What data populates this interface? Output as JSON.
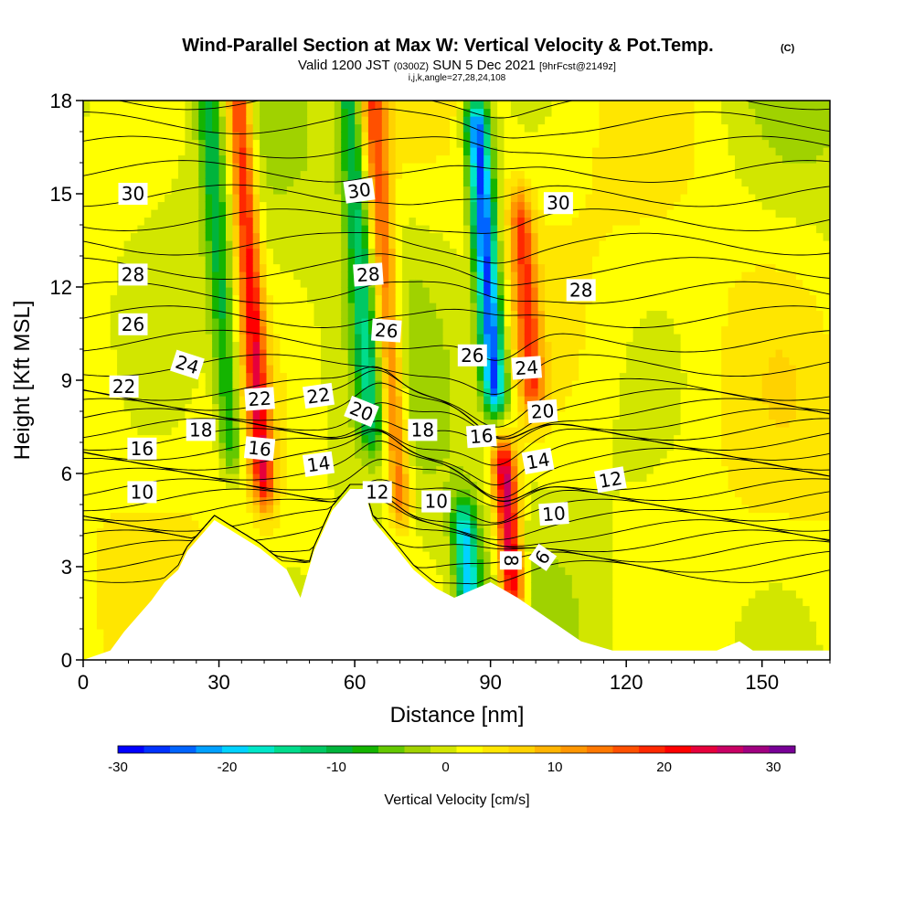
{
  "title": {
    "main": "Wind-Parallel Section at Max W: Vertical Velocity & Pot.Temp.",
    "mark": "(C)",
    "valid_prefix": "Valid 1200 JST",
    "valid_zulu": "(0300Z)",
    "valid_date": "SUN 5 Dec 2021",
    "forecast": "[9hrFcst@2149z]",
    "params": "i,j,k,angle=27,28,24,108"
  },
  "chart_data": {
    "type": "heatmap",
    "xlabel": "Distance [nm]",
    "ylabel": "Height [Kft MSL]",
    "xlim": [
      0,
      165
    ],
    "ylim": [
      0,
      18
    ],
    "x_ticks": [
      0,
      30,
      60,
      90,
      120,
      150
    ],
    "y_ticks": [
      0,
      3,
      6,
      9,
      12,
      15,
      18
    ],
    "colorbar": {
      "title": "Vertical Velocity [cm/s]",
      "range": [
        -30,
        32
      ],
      "ticks": [
        -30,
        -20,
        -10,
        0,
        10,
        20,
        30
      ],
      "colors": [
        "#0000ff",
        "#0032ff",
        "#0064ff",
        "#00a0ff",
        "#00d2ff",
        "#00e6c8",
        "#00dc8c",
        "#00c864",
        "#00b43c",
        "#14b400",
        "#64c800",
        "#a0d200",
        "#d2e600",
        "#ffff00",
        "#ffe600",
        "#ffd200",
        "#ffb400",
        "#ff9600",
        "#ff7800",
        "#ff5000",
        "#ff2800",
        "#ff0000",
        "#e6003c",
        "#c80064",
        "#a00080",
        "#780096"
      ]
    },
    "velocity_features": [
      {
        "type": "updraft",
        "x": 37,
        "y_range": [
          6,
          18
        ],
        "w_max": 20
      },
      {
        "type": "updraft",
        "x": 67,
        "y_range": [
          5.5,
          18
        ],
        "w_max": 15
      },
      {
        "type": "updraft",
        "x": 94,
        "y_range": [
          2.5,
          6
        ],
        "w_max": 25
      },
      {
        "type": "updraft",
        "x": 98,
        "y_range": [
          9,
          14
        ],
        "w_max": 15
      },
      {
        "type": "downdraft",
        "x": 89,
        "y_range": [
          9,
          17
        ],
        "w_min": -28
      },
      {
        "type": "downdraft",
        "x": 85,
        "y_range": [
          1.5,
          4
        ],
        "w_min": -20
      },
      {
        "type": "downdraft",
        "x": 30,
        "y_range": [
          7,
          18
        ],
        "w_min": -10
      },
      {
        "type": "downdraft",
        "x": 61,
        "y_range": [
          8,
          18
        ],
        "w_min": -12
      }
    ],
    "terrain": [
      {
        "x": 0,
        "h": 0
      },
      {
        "x": 6,
        "h": 0.3
      },
      {
        "x": 9,
        "h": 0.9
      },
      {
        "x": 12,
        "h": 1.4
      },
      {
        "x": 15,
        "h": 1.9
      },
      {
        "x": 18,
        "h": 2.5
      },
      {
        "x": 21,
        "h": 2.9
      },
      {
        "x": 23,
        "h": 3.5
      },
      {
        "x": 29,
        "h": 4.5
      },
      {
        "x": 39,
        "h": 3.6
      },
      {
        "x": 45,
        "h": 2.9
      },
      {
        "x": 48,
        "h": 2.0
      },
      {
        "x": 51,
        "h": 3.5
      },
      {
        "x": 55,
        "h": 4.8
      },
      {
        "x": 59,
        "h": 5.5
      },
      {
        "x": 62,
        "h": 5.5
      },
      {
        "x": 64,
        "h": 4.5
      },
      {
        "x": 68,
        "h": 3.8
      },
      {
        "x": 73,
        "h": 2.9
      },
      {
        "x": 78,
        "h": 2.3
      },
      {
        "x": 82,
        "h": 2.0
      },
      {
        "x": 90,
        "h": 2.5
      },
      {
        "x": 96,
        "h": 2.0
      },
      {
        "x": 103,
        "h": 1.3
      },
      {
        "x": 110,
        "h": 0.6
      },
      {
        "x": 117,
        "h": 0.3
      },
      {
        "x": 140,
        "h": 0.3
      },
      {
        "x": 145,
        "h": 0.6
      },
      {
        "x": 148,
        "h": 0.3
      },
      {
        "x": 165,
        "h": 0.3
      }
    ],
    "contour_labels": [
      {
        "text": "30",
        "x": 11,
        "y": 15,
        "rot": 0
      },
      {
        "text": "30",
        "x": 61,
        "y": 15.1,
        "rot": -8
      },
      {
        "text": "30",
        "x": 105,
        "y": 14.7,
        "rot": 0
      },
      {
        "text": "28",
        "x": 11,
        "y": 12.4,
        "rot": 0
      },
      {
        "text": "28",
        "x": 63,
        "y": 12.4,
        "rot": -4
      },
      {
        "text": "28",
        "x": 110,
        "y": 11.9,
        "rot": 0
      },
      {
        "text": "26",
        "x": 11,
        "y": 10.8,
        "rot": 0
      },
      {
        "text": "26",
        "x": 67,
        "y": 10.6,
        "rot": 4
      },
      {
        "text": "26",
        "x": 86,
        "y": 9.8,
        "rot": 0
      },
      {
        "text": "24",
        "x": 23,
        "y": 9.5,
        "rot": 18
      },
      {
        "text": "24",
        "x": 98,
        "y": 9.4,
        "rot": -4
      },
      {
        "text": "22",
        "x": 9,
        "y": 8.8,
        "rot": 0
      },
      {
        "text": "22",
        "x": 39,
        "y": 8.4,
        "rot": -4
      },
      {
        "text": "22",
        "x": 52,
        "y": 8.5,
        "rot": -8
      },
      {
        "text": "20",
        "x": 61.5,
        "y": 8.0,
        "rot": 22
      },
      {
        "text": "20",
        "x": 101.5,
        "y": 8.0,
        "rot": -4
      },
      {
        "text": "18",
        "x": 26,
        "y": 7.4,
        "rot": 0
      },
      {
        "text": "18",
        "x": 75,
        "y": 7.4,
        "rot": 0
      },
      {
        "text": "16",
        "x": 13,
        "y": 6.8,
        "rot": 0
      },
      {
        "text": "16",
        "x": 39,
        "y": 6.8,
        "rot": 6
      },
      {
        "text": "16",
        "x": 88,
        "y": 7.2,
        "rot": -4
      },
      {
        "text": "14",
        "x": 52,
        "y": 6.3,
        "rot": -8
      },
      {
        "text": "14",
        "x": 100.5,
        "y": 6.4,
        "rot": -10
      },
      {
        "text": "12",
        "x": 65,
        "y": 5.4,
        "rot": 0
      },
      {
        "text": "12",
        "x": 116.5,
        "y": 5.8,
        "rot": -10
      },
      {
        "text": "10",
        "x": 13,
        "y": 5.4,
        "rot": 0
      },
      {
        "text": "10",
        "x": 78,
        "y": 5.1,
        "rot": 0
      },
      {
        "text": "10",
        "x": 104,
        "y": 4.7,
        "rot": -4
      },
      {
        "text": "8",
        "x": 94.5,
        "y": 3.2,
        "rot": 90
      },
      {
        "text": "6",
        "x": 101.5,
        "y": 3.3,
        "rot": -55
      }
    ]
  }
}
